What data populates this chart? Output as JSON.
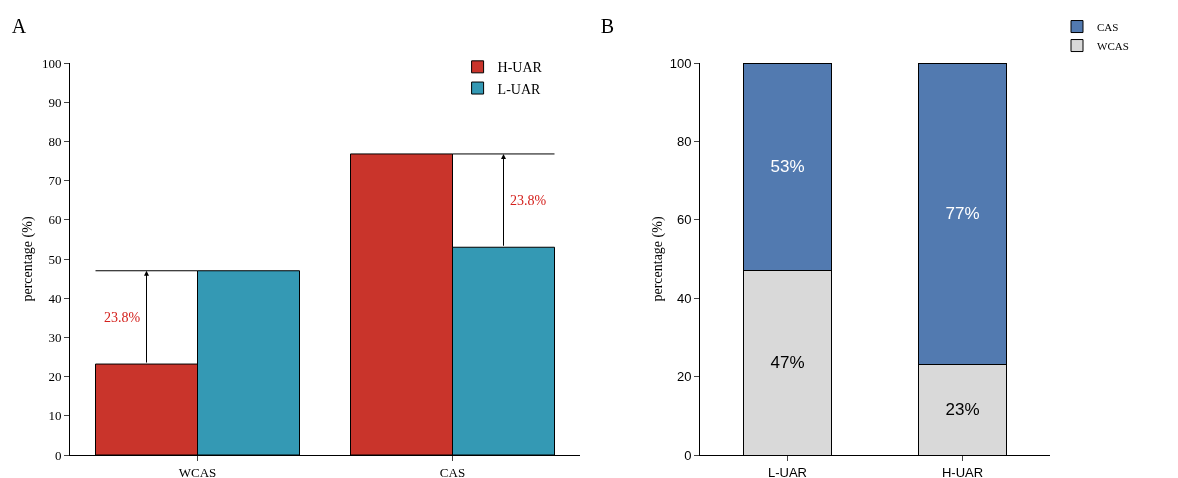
{
  "chart_data": [
    {
      "type": "bar",
      "title": "A",
      "ylabel": "percentage (%)",
      "categories": [
        "WCAS",
        "CAS"
      ],
      "series": [
        {
          "name": "H-UAR",
          "color": "#c9342b",
          "values": [
            23.2,
            76.8
          ]
        },
        {
          "name": "L-UAR",
          "color": "#3499b4",
          "values": [
            47,
            53
          ]
        }
      ],
      "ylim": [
        0,
        100
      ],
      "yticks": [
        0,
        10,
        20,
        30,
        40,
        50,
        60,
        70,
        80,
        90,
        100
      ],
      "legend": "top right",
      "annotations": [
        "23.8%",
        "23.8%"
      ]
    },
    {
      "type": "bar",
      "stacked": true,
      "title": "B",
      "ylabel": "percentage (%)",
      "categories": [
        "L-UAR",
        "H-UAR"
      ],
      "series": [
        {
          "name": "WCAS",
          "color": "#d9d9d9",
          "values": [
            47,
            23
          ],
          "value_labels": [
            "47%",
            "23%"
          ]
        },
        {
          "name": "CAS",
          "color": "#527ab0",
          "values": [
            53,
            77
          ],
          "value_labels": [
            "53%",
            "77%"
          ]
        }
      ],
      "ylim": [
        0,
        100
      ],
      "yticks": [
        0,
        20,
        40,
        60,
        80,
        100
      ],
      "legend": "top right"
    }
  ]
}
